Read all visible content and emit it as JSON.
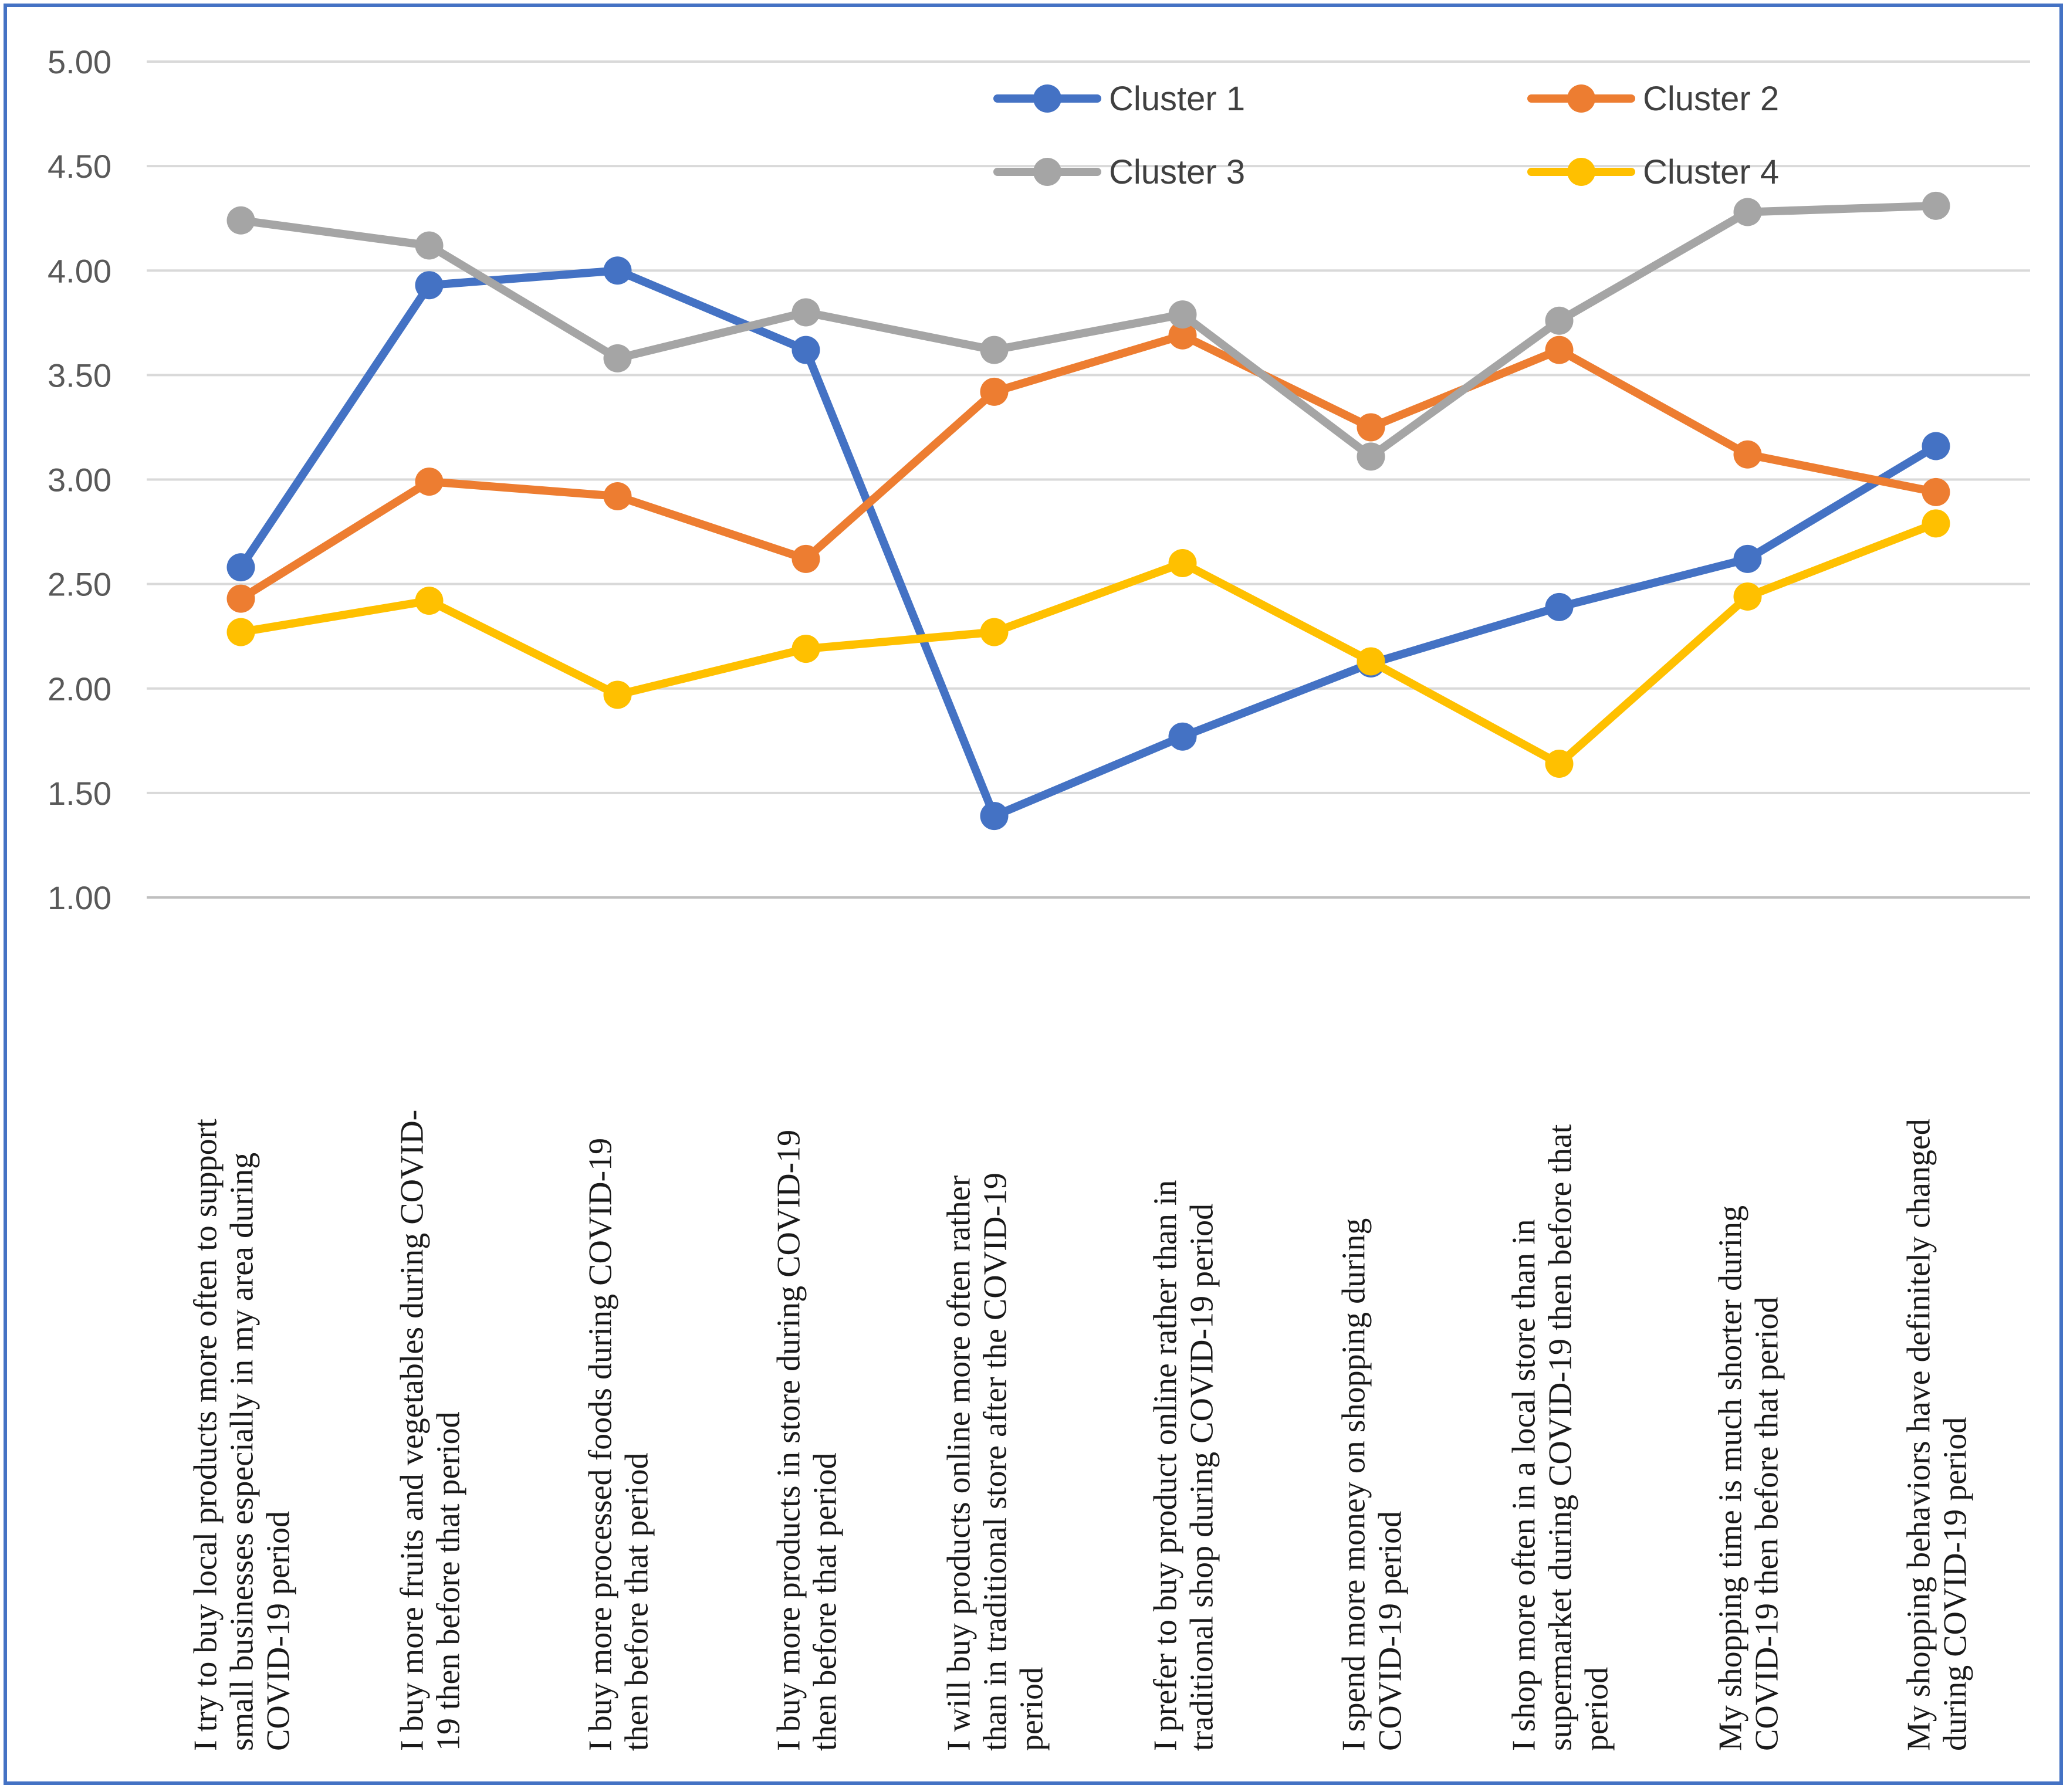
{
  "chart_data": {
    "type": "line",
    "title": "",
    "xlabel": "",
    "ylabel": "",
    "ylim": [
      1.0,
      5.0
    ],
    "yticks": [
      "1.00",
      "1.50",
      "2.00",
      "2.50",
      "3.00",
      "3.50",
      "4.00",
      "4.50",
      "5.00"
    ],
    "grid": true,
    "legend_position": "top-right",
    "categories": [
      "I try to buy local products more often to support small businesses especially in my area during COVID-19 period",
      "I buy more fruits and vegetables during COVID-19 then before that period",
      "I buy more processed foods during COVID-19 then before that period",
      "I buy more products in store during COVID-19 then before that period",
      "I will buy products online more often rather than in traditional store after the COVID-19 period",
      "I prefer to buy product online rather than in traditional shop during COVID-19 period",
      "I spend more money on shopping during COVID-19 period",
      "I shop more often in a local store than in supermarket during COVID-19 then before that period",
      "My shopping time is much shorter during COVID-19 then before that period",
      "My shopping behaviors have definitely changed during COVID-19 period"
    ],
    "category_lines": [
      [
        "I try to buy local products more often to support",
        "small businesses especially in my area during",
        "COVID-19 period"
      ],
      [
        "I buy more fruits and vegetables during COVID-",
        "19 then before that period"
      ],
      [
        "I buy more processed foods during COVID-19",
        "then before that period"
      ],
      [
        "I buy more products in store during COVID-19",
        "then before that period"
      ],
      [
        "I will buy products online more often rather",
        "than in traditional store after the COVID-19",
        "period"
      ],
      [
        "I prefer to buy product online rather than in",
        "traditional shop during COVID-19 period"
      ],
      [
        "I spend more money on shopping during",
        "COVID-19 period"
      ],
      [
        "I shop more often in a local store than in",
        "supermarket during COVID-19 then before that",
        "period"
      ],
      [
        "My shopping time is much shorter during",
        "COVID-19 then before that period"
      ],
      [
        "My shopping behaviors have definitely changed",
        "during COVID-19 period"
      ]
    ],
    "series": [
      {
        "name": "Cluster 1",
        "color": "#4472c4",
        "values": [
          2.58,
          3.93,
          4.0,
          3.62,
          1.39,
          1.77,
          2.12,
          2.39,
          2.62,
          3.16
        ]
      },
      {
        "name": "Cluster 2",
        "color": "#ed7d31",
        "values": [
          2.43,
          2.99,
          2.92,
          2.62,
          3.42,
          3.69,
          3.25,
          3.62,
          3.12,
          2.94
        ]
      },
      {
        "name": "Cluster 3",
        "color": "#a5a5a5",
        "values": [
          4.24,
          4.12,
          3.58,
          3.8,
          3.62,
          3.79,
          3.11,
          3.76,
          4.28,
          4.31
        ]
      },
      {
        "name": "Cluster 4",
        "color": "#ffc000",
        "values": [
          2.27,
          2.42,
          1.97,
          2.19,
          2.27,
          2.6,
          2.13,
          1.64,
          2.44,
          2.79
        ]
      }
    ]
  }
}
